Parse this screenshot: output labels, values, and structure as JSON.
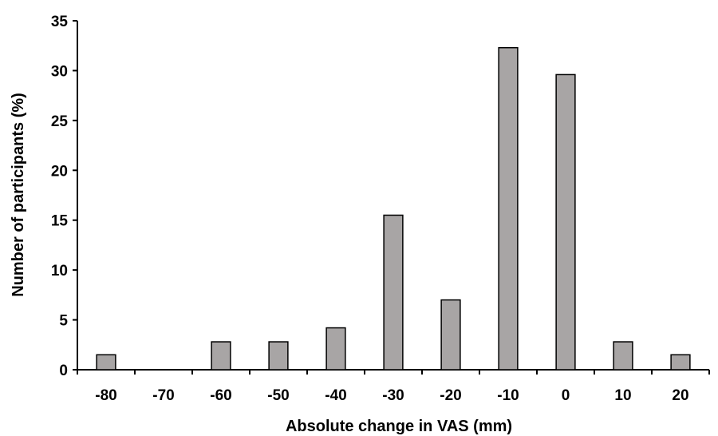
{
  "chart_data": {
    "type": "bar",
    "categories": [
      "-80",
      "-70",
      "-60",
      "-50",
      "-40",
      "-30",
      "-20",
      "-10",
      "0",
      "10",
      "20"
    ],
    "values": [
      1.5,
      0,
      2.8,
      2.8,
      4.2,
      15.5,
      7.0,
      32.3,
      29.6,
      2.8,
      1.5
    ],
    "xlabel": "Absolute  change in VAS (mm)",
    "ylabel": "Number of participants (%)",
    "ylim": [
      0,
      35
    ],
    "yticks": [
      "0",
      "5",
      "10",
      "15",
      "20",
      "25",
      "30",
      "35"
    ],
    "grid": false,
    "bar_fill": "#a8a5a5",
    "bar_stroke": "#000000"
  }
}
